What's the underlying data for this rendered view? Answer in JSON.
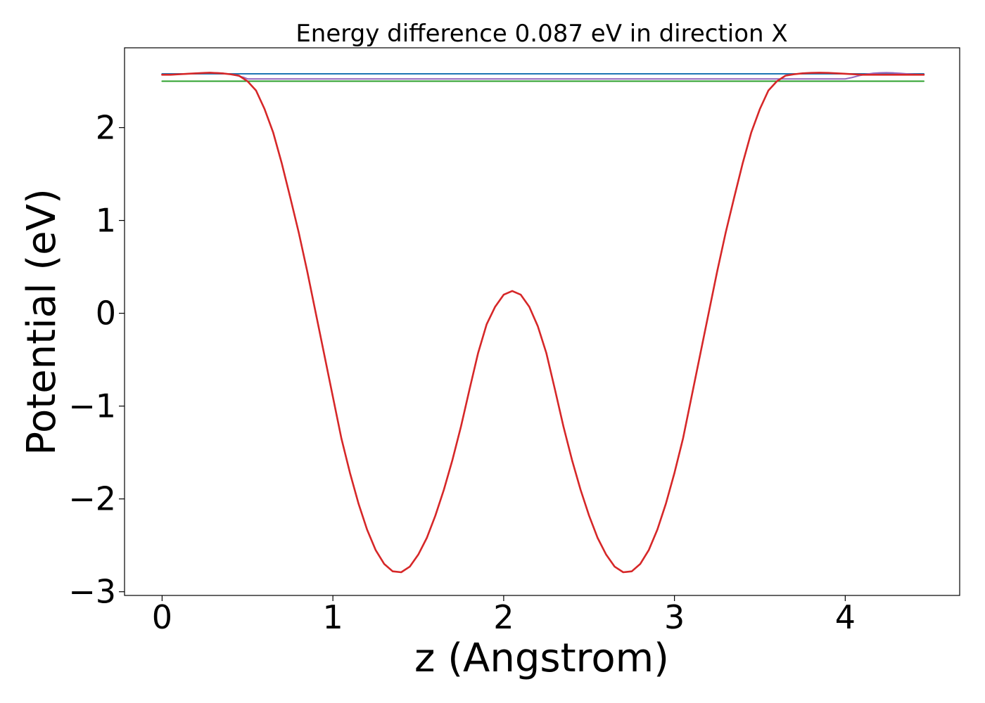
{
  "chart_data": {
    "type": "line",
    "title": "Energy difference 0.087 eV in direction X",
    "xlabel": "z (Angstrom)",
    "ylabel": "Potential (eV)",
    "xlim": [
      -0.22,
      4.67
    ],
    "ylim": [
      -3.04,
      2.86
    ],
    "xticks": [
      0,
      1,
      2,
      3,
      4
    ],
    "xtick_labels": [
      "0",
      "1",
      "2",
      "3",
      "4"
    ],
    "yticks": [
      -3,
      -2,
      -1,
      0,
      1,
      2
    ],
    "ytick_labels": [
      "−3",
      "−2",
      "−1",
      "0",
      "1",
      "2"
    ],
    "grid": false,
    "legend": "none",
    "series": [
      {
        "color": "#1f77b4",
        "x": [
          0,
          4.46
        ],
        "y": [
          2.58,
          2.58
        ]
      },
      {
        "color": "#2ca02c",
        "x": [
          0,
          4.46
        ],
        "y": [
          2.5,
          2.5
        ]
      },
      {
        "color": "#9467bd",
        "x": [
          0,
          0.05,
          0.1,
          0.15,
          0.2,
          0.25,
          0.28,
          0.32,
          0.36,
          0.4,
          0.44,
          0.48,
          0.5,
          4.0,
          4.04,
          4.08,
          4.12,
          4.16,
          4.2,
          4.24,
          4.28,
          4.32,
          4.36,
          4.4,
          4.46
        ],
        "y": [
          2.57,
          2.57,
          2.575,
          2.58,
          2.585,
          2.59,
          2.592,
          2.59,
          2.585,
          2.575,
          2.56,
          2.54,
          2.525,
          2.525,
          2.54,
          2.56,
          2.575,
          2.585,
          2.59,
          2.592,
          2.59,
          2.585,
          2.58,
          2.575,
          2.57
        ]
      },
      {
        "color": "#d62728",
        "x": [
          0,
          0.05,
          0.1,
          0.15,
          0.2,
          0.25,
          0.28,
          0.35,
          0.4,
          0.45,
          0.5,
          0.55,
          0.6,
          0.65,
          0.7,
          0.75,
          0.8,
          0.85,
          0.9,
          0.95,
          1.0,
          1.05,
          1.1,
          1.15,
          1.2,
          1.25,
          1.3,
          1.35,
          1.4,
          1.45,
          1.5,
          1.55,
          1.6,
          1.65,
          1.7,
          1.75,
          1.8,
          1.85,
          1.9,
          1.95,
          2.0,
          2.05,
          2.1,
          2.15,
          2.2,
          2.25,
          2.3,
          2.35,
          2.4,
          2.45,
          2.5,
          2.55,
          2.6,
          2.65,
          2.7,
          2.75,
          2.8,
          2.85,
          2.9,
          2.95,
          3.0,
          3.05,
          3.1,
          3.15,
          3.2,
          3.25,
          3.3,
          3.35,
          3.4,
          3.45,
          3.5,
          3.55,
          3.6,
          3.65,
          3.7,
          3.75,
          3.8,
          3.85,
          3.9,
          3.95,
          4.0,
          4.05,
          4.1,
          4.15,
          4.2,
          4.25,
          4.3,
          4.35,
          4.4,
          4.46
        ],
        "y": [
          2.57,
          2.57,
          2.575,
          2.58,
          2.585,
          2.59,
          2.592,
          2.585,
          2.575,
          2.56,
          2.5,
          2.4,
          2.2,
          1.95,
          1.62,
          1.25,
          0.87,
          0.45,
          0.0,
          -0.45,
          -0.9,
          -1.35,
          -1.72,
          -2.05,
          -2.33,
          -2.55,
          -2.7,
          -2.78,
          -2.79,
          -2.73,
          -2.6,
          -2.42,
          -2.18,
          -1.9,
          -1.58,
          -1.22,
          -0.82,
          -0.43,
          -0.12,
          0.07,
          0.2,
          0.24,
          0.2,
          0.07,
          -0.14,
          -0.43,
          -0.82,
          -1.22,
          -1.58,
          -1.9,
          -2.18,
          -2.42,
          -2.6,
          -2.73,
          -2.79,
          -2.78,
          -2.7,
          -2.55,
          -2.33,
          -2.05,
          -1.72,
          -1.35,
          -0.9,
          -0.45,
          0.0,
          0.45,
          0.87,
          1.25,
          1.62,
          1.95,
          2.2,
          2.4,
          2.5,
          2.56,
          2.575,
          2.585,
          2.59,
          2.592,
          2.59,
          2.585,
          2.58,
          2.575,
          2.57,
          2.57,
          2.57,
          2.57,
          2.57,
          2.57,
          2.57,
          2.57
        ]
      }
    ]
  }
}
